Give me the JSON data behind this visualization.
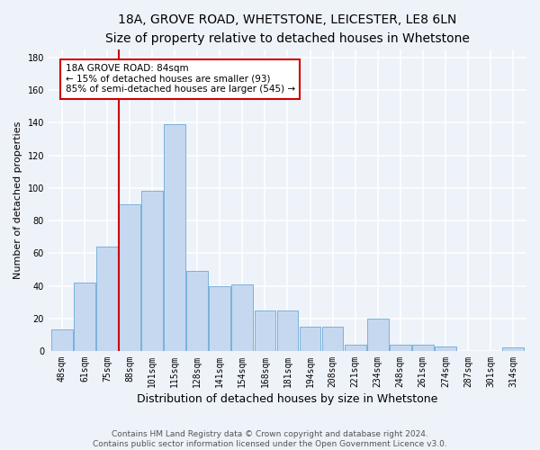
{
  "title": "18A, GROVE ROAD, WHETSTONE, LEICESTER, LE8 6LN",
  "subtitle": "Size of property relative to detached houses in Whetstone",
  "xlabel": "Distribution of detached houses by size in Whetstone",
  "ylabel": "Number of detached properties",
  "categories": [
    "48sqm",
    "61sqm",
    "75sqm",
    "88sqm",
    "101sqm",
    "115sqm",
    "128sqm",
    "141sqm",
    "154sqm",
    "168sqm",
    "181sqm",
    "194sqm",
    "208sqm",
    "221sqm",
    "234sqm",
    "248sqm",
    "261sqm",
    "274sqm",
    "287sqm",
    "301sqm",
    "314sqm"
  ],
  "values": [
    13,
    42,
    64,
    90,
    98,
    139,
    49,
    40,
    41,
    25,
    25,
    15,
    15,
    4,
    20,
    4,
    4,
    3,
    0,
    0,
    2
  ],
  "bar_color": "#c5d8f0",
  "bar_edge_color": "#6aaad4",
  "vline_x_index": 2.5,
  "vline_color": "#cc0000",
  "annotation_text": "18A GROVE ROAD: 84sqm\n← 15% of detached houses are smaller (93)\n85% of semi-detached houses are larger (545) →",
  "annotation_box_color": "#ffffff",
  "annotation_box_edge": "#cc0000",
  "ylim": [
    0,
    185
  ],
  "yticks": [
    0,
    20,
    40,
    60,
    80,
    100,
    120,
    140,
    160,
    180
  ],
  "footer1": "Contains HM Land Registry data © Crown copyright and database right 2024.",
  "footer2": "Contains public sector information licensed under the Open Government Licence v3.0.",
  "background_color": "#eef2f9",
  "grid_color": "#ffffff",
  "title_fontsize": 10,
  "subtitle_fontsize": 9,
  "ylabel_fontsize": 8,
  "xlabel_fontsize": 9,
  "tick_fontsize": 7,
  "annotation_fontsize": 7.5,
  "footer_fontsize": 6.5
}
